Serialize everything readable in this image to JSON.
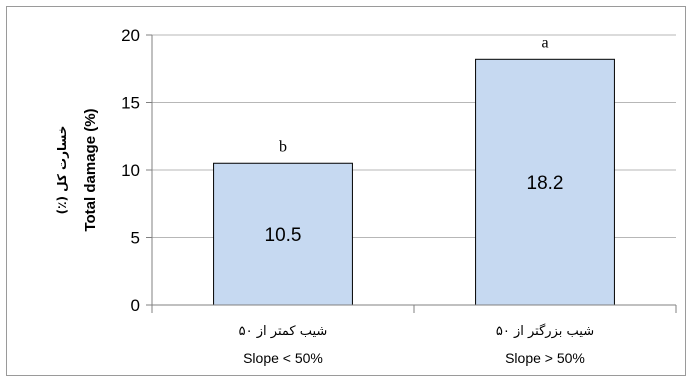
{
  "chart_data": {
    "type": "bar",
    "categories": [
      {
        "label_fa": "شیب کمتر از ۵۰",
        "label_en": "Slope < 50%"
      },
      {
        "label_fa": "شیب بزرگتر از ۵۰",
        "label_en": "Slope > 50%"
      }
    ],
    "values": [
      10.5,
      18.2
    ],
    "value_labels": [
      "10.5",
      "18.2"
    ],
    "significance_letters": [
      "b",
      "a"
    ],
    "ylabel_en": "Total damage (%)",
    "ylabel_fa": "خسارت کل (٪)",
    "ylim": [
      0,
      20
    ],
    "yticks": [
      0,
      5,
      10,
      15,
      20
    ],
    "gridlines": true,
    "bar_color": "#c6d9f1",
    "bar_edge_color": "#000000",
    "grid_color": "#b7b7b7"
  }
}
